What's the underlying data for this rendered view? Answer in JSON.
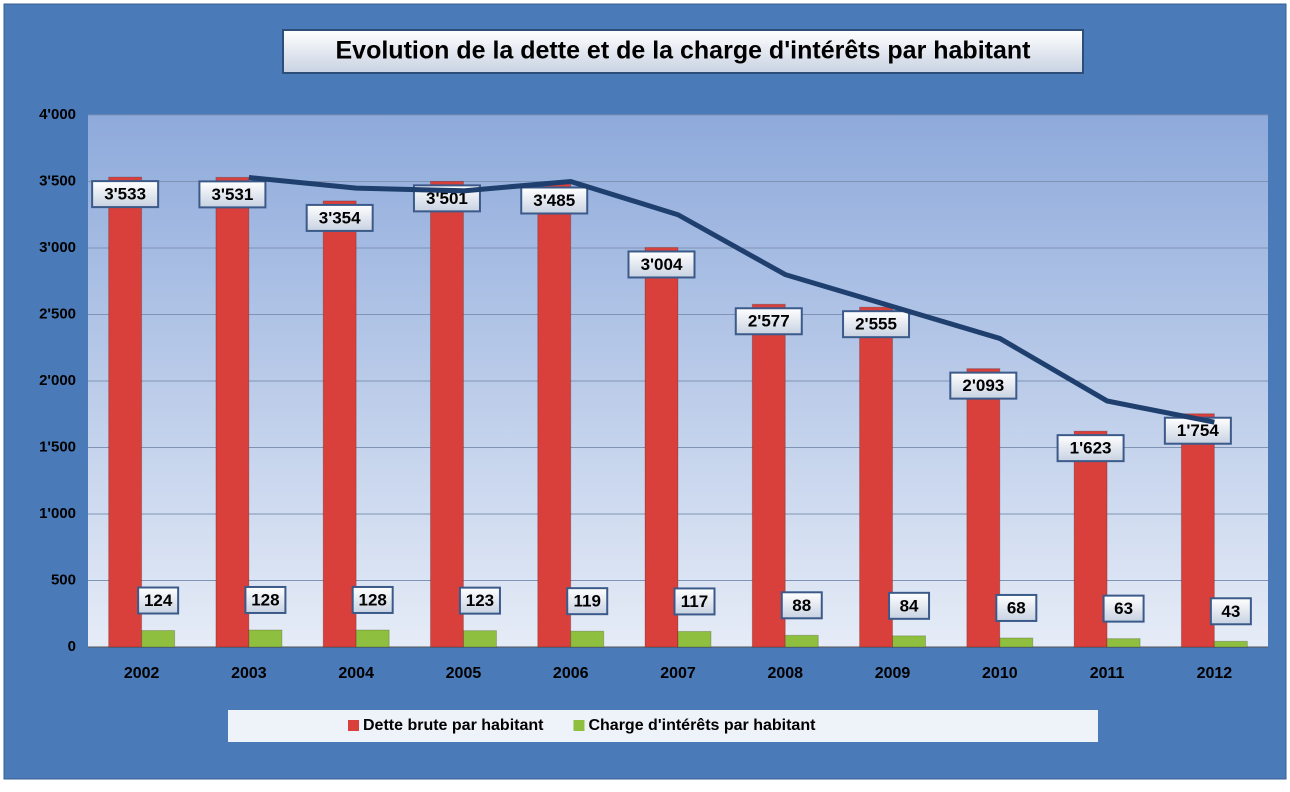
{
  "chart_data": {
    "type": "bar",
    "title": "Evolution de la dette et de la charge d'intérêts par habitant",
    "categories": [
      "2002",
      "2003",
      "2004",
      "2005",
      "2006",
      "2007",
      "2008",
      "2009",
      "2010",
      "2011",
      "2012"
    ],
    "series": [
      {
        "name": "Dette brute par habitant",
        "color": "#d9403b",
        "values": [
          3533,
          3531,
          3354,
          3501,
          3485,
          3004,
          2577,
          2555,
          2093,
          1623,
          1754
        ],
        "value_labels": [
          "3'533",
          "3'531",
          "3'354",
          "3'501",
          "3'485",
          "3'004",
          "2'577",
          "2'555",
          "2'093",
          "1'623",
          "1'754"
        ]
      },
      {
        "name": "Charge d'intérêts par habitant",
        "color": "#8fbf3f",
        "values": [
          124,
          128,
          128,
          123,
          119,
          117,
          88,
          84,
          68,
          63,
          43
        ]
      },
      {
        "type": "line",
        "color": "#1f3f6e",
        "values": [
          null,
          3530,
          3450,
          3430,
          3500,
          3250,
          2800,
          2560,
          2320,
          1850,
          1690
        ]
      }
    ],
    "ylim": [
      0,
      4000
    ],
    "yticks": [
      0,
      500,
      {
        "value": 1000,
        "label": "1'000"
      },
      {
        "value": 1500,
        "label": "1'500"
      },
      {
        "value": 2000,
        "label": "2'000"
      },
      {
        "value": 2500,
        "label": "2'500"
      },
      {
        "value": 3000,
        "label": "3'000"
      },
      {
        "value": 3500,
        "label": "3'500"
      },
      {
        "value": 4000,
        "label": "4'000"
      }
    ],
    "grid": true,
    "legend": "bottom"
  }
}
